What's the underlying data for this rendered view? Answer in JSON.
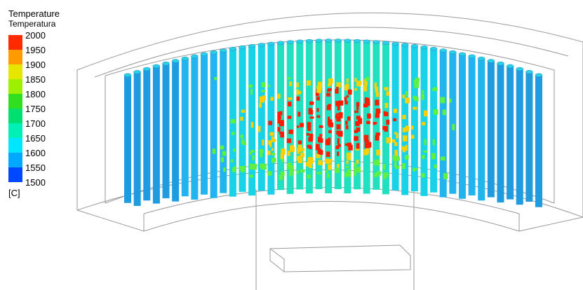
{
  "legend": {
    "title": "Temperature",
    "subtitle": "Temperatura",
    "ticks": [
      2000,
      1950,
      1900,
      1850,
      1800,
      1750,
      1700,
      1650,
      1600,
      1550,
      1500
    ],
    "unit": "[C]"
  }
}
